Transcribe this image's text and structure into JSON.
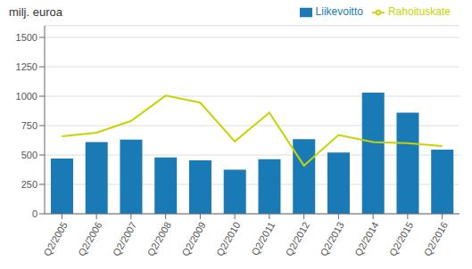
{
  "chart_data": {
    "type": "bar",
    "title": "milj. euroa",
    "categories": [
      "Q2/2005",
      "Q2/2006",
      "Q2/2007",
      "Q2/2008",
      "Q2/2009",
      "Q2/2010",
      "Q2/2011",
      "Q2/2012",
      "Q2/2013",
      "Q2/2014",
      "Q2/2015",
      "Q2/2016"
    ],
    "series": [
      {
        "name": "Liikevoitto",
        "type": "bar",
        "color": "#1a7ab5",
        "values": [
          470,
          610,
          630,
          480,
          455,
          375,
          465,
          635,
          520,
          1030,
          860,
          545
        ]
      },
      {
        "name": "Rahoituskate",
        "type": "line",
        "color": "#c8d400",
        "values": [
          660,
          690,
          790,
          1005,
          945,
          615,
          860,
          410,
          670,
          610,
          600,
          575
        ]
      }
    ],
    "ylim": [
      0,
      1600
    ],
    "yticks": [
      0,
      250,
      500,
      750,
      1000,
      1250,
      1500
    ],
    "grid": true,
    "legend": "upper right"
  }
}
